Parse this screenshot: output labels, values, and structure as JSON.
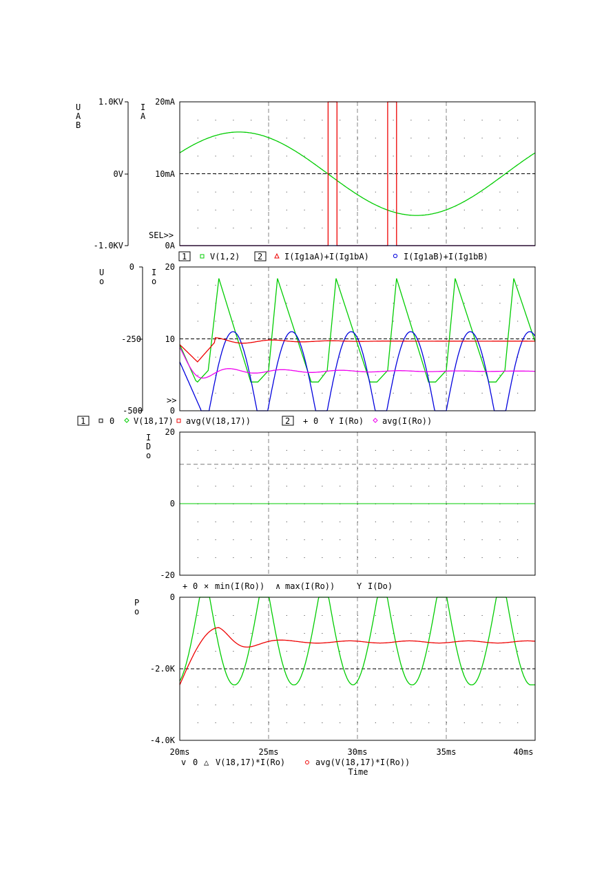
{
  "colors": {
    "green": "#00cc00",
    "red": "#ee0000",
    "blue": "#0000dd",
    "magenta": "#ee00ee",
    "axis": "#000000",
    "grid": "#555555"
  },
  "x_axis": {
    "ticks": [
      "20ms",
      "25ms",
      "30ms",
      "35ms",
      "40ms"
    ],
    "label": "Time",
    "range_ms": [
      20,
      40
    ]
  },
  "panel1": {
    "left_axis": {
      "label": [
        "U",
        "A",
        "B"
      ],
      "ticks": [
        "1.0KV",
        "0V",
        "-1.0KV"
      ]
    },
    "right_axis": {
      "label": [
        "I",
        "A"
      ],
      "ticks": [
        "20mA",
        "10mA",
        "0A"
      ]
    },
    "sel_marker": "SEL>>",
    "legend": {
      "box1": "1",
      "item1": "V(1,2)",
      "box2": "2",
      "item2": "I(Ig1aA)+I(Ig1bA)",
      "item3": "I(Ig1aB)+I(Ig1bB)"
    }
  },
  "panel2": {
    "left_axis": {
      "label": [
        "U",
        "o"
      ],
      "ticks": [
        "0",
        "-250",
        "-500"
      ]
    },
    "right_axis": {
      "label": [
        "I",
        "o"
      ],
      "ticks": [
        "20",
        "10",
        "0"
      ]
    },
    "marker": ">>",
    "legend": {
      "box1": "1",
      "item0": "0",
      "item1": "V(18,17)",
      "item2": "avg(V(18,17))",
      "box2": "2",
      "item3": "0",
      "item4": "I(Ro)",
      "item5": "avg(I(Ro))"
    }
  },
  "panel3": {
    "axis": {
      "label": [
        "I",
        "D",
        "o"
      ],
      "ticks": [
        "20",
        "0",
        "-20"
      ]
    },
    "legend": {
      "item1": "0",
      "item2": "min(I(Ro))",
      "item3": "max(I(Ro))",
      "item4": "I(Do)"
    }
  },
  "panel4": {
    "axis": {
      "label": [
        "P",
        "o"
      ],
      "ticks": [
        "0",
        "-2.0K",
        "-4.0K"
      ]
    },
    "legend": {
      "item1": "0",
      "item2": "V(18,17)*I(Ro)",
      "item3": "avg(V(18,17)*I(Ro))"
    }
  },
  "chart_data": [
    {
      "type": "line",
      "title": "",
      "x_unit": "ms",
      "xlim": [
        20,
        40
      ],
      "ylabel": "UAB",
      "ylim": [
        -1000,
        1000
      ],
      "y2label": "IA",
      "y2lim": [
        0,
        20
      ],
      "series": [
        {
          "name": "V(1,2)",
          "axis": "left",
          "kind": "sine",
          "amplitude_V": 580,
          "period_ms": 20,
          "phase_zero_ms": 28.33
        },
        {
          "name": "I(Ig1aA)+I(Ig1bA)",
          "axis": "right",
          "kind": "pulses",
          "pulses_ms": [
            [
              28.35,
              28.85
            ],
            [
              31.7,
              32.2
            ]
          ],
          "high_mA": 20,
          "low_mA": 0
        },
        {
          "name": "I(Ig1aB)+I(Ig1bB)",
          "axis": "right",
          "kind": "constant",
          "value_mA": 0
        }
      ]
    },
    {
      "type": "line",
      "title": "",
      "x_unit": "ms",
      "xlim": [
        20,
        40
      ],
      "ylabel": "Uo",
      "ylim": [
        -500,
        0
      ],
      "y2label": "Io",
      "y2lim": [
        0,
        20
      ],
      "series": [
        {
          "name": "V(18,17)",
          "axis": "left",
          "kind": "sawtooth",
          "x": [
            21.0,
            21.6,
            22.2,
            24.0,
            24.4,
            25.0,
            25.5,
            27.4,
            27.8,
            28.3,
            28.8,
            30.7,
            31.1,
            31.7,
            32.2,
            34.0,
            34.4,
            35.0,
            35.5,
            37.4,
            37.8,
            38.3,
            38.8,
            40.0
          ],
          "y": [
            -400,
            -360,
            -40,
            -400,
            -400,
            -360,
            -40,
            -400,
            -400,
            -360,
            -40,
            -400,
            -400,
            -360,
            -40,
            -400,
            -400,
            -360,
            -40,
            -400,
            -400,
            -360,
            -40,
            -260
          ]
        },
        {
          "name": "avg(V(18,17))",
          "axis": "left",
          "kind": "settling",
          "start": -270,
          "final": -255
        },
        {
          "name": "I(Ro)",
          "axis": "right",
          "kind": "rectified",
          "peak": 11.0,
          "min": 0,
          "period_ms": 3.33
        },
        {
          "name": "avg(I(Ro))",
          "axis": "right",
          "kind": "settling",
          "start": 8.8,
          "final": 5.5
        }
      ]
    },
    {
      "type": "line",
      "title": "",
      "x_unit": "ms",
      "xlim": [
        20,
        40
      ],
      "ylabel": "IDo",
      "ylim": [
        -20,
        20
      ],
      "series": [
        {
          "name": "I(Do)",
          "kind": "constant",
          "value": 0
        },
        {
          "name": "max(I(Ro))",
          "kind": "constant",
          "value": 11.0
        }
      ]
    },
    {
      "type": "line",
      "title": "",
      "x_unit": "ms",
      "xlim": [
        20,
        40
      ],
      "ylabel": "Po",
      "ylim": [
        -4000,
        0
      ],
      "series": [
        {
          "name": "V(18,17)*I(Ro)",
          "kind": "periodic",
          "min": -2450,
          "max": 0,
          "period_ms": 3.33
        },
        {
          "name": "avg(V(18,17)*I(Ro))",
          "kind": "settling",
          "start": -2450,
          "final": -1250
        }
      ]
    }
  ]
}
